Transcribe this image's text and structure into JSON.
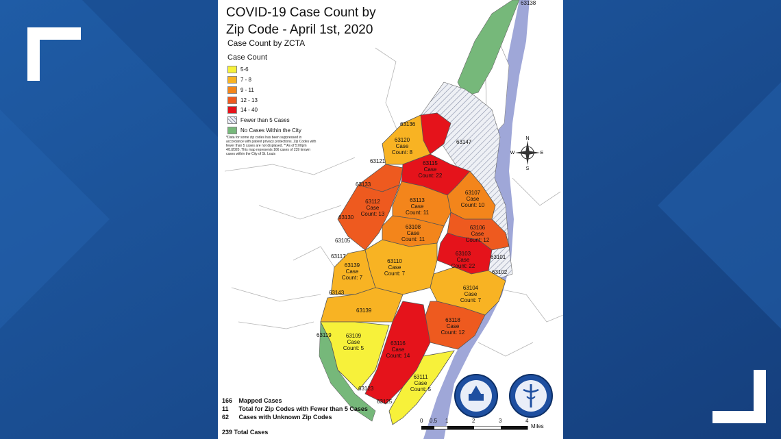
{
  "title": "COVID-19 Case Count by Zip Code - April 1st, 2020",
  "title_line1": "COVID-19 Case Count by",
  "title_line2": "Zip Code - April 1st, 2020",
  "subtitle": "Case Count by ZCTA",
  "legend": {
    "title": "Case Count",
    "items": [
      {
        "label": "5-6",
        "color": "#f7f13a"
      },
      {
        "label": "7 - 8",
        "color": "#f8b323"
      },
      {
        "label": "9 - 11",
        "color": "#f3851b"
      },
      {
        "label": "12 - 13",
        "color": "#ee5a1f"
      },
      {
        "label": "14 - 40",
        "color": "#e5131b"
      },
      {
        "label": "Fewer than 5 Cases",
        "color": "#e6e9f0"
      },
      {
        "label": "No Cases Within the City",
        "color": "#76b87a"
      }
    ]
  },
  "note": "*Data for some zip codes has been suppressed in accordance with patient privacy protections. Zip Codes with fewer than 5 cases are not displayed. **As of 5:00pm 4/1/2020, This map represents 166 cases of 239 known cases within the City of St. Louis",
  "zips": {
    "z63138": "63138",
    "z63136": "63136",
    "z63147": "63147",
    "z63121": "63121",
    "z63133": "63133",
    "z63130": "63130",
    "z63105": "63105",
    "z63117": "63117",
    "z63143": "63143",
    "z63139b": "63139",
    "z63119": "63119",
    "z63123": "63123",
    "z63125": "63125",
    "z63101": "63101",
    "z63102": "63102"
  },
  "areas": {
    "a63120": {
      "zip": "63120",
      "l1": "Case",
      "l2": "Count: 8"
    },
    "a63115": {
      "zip": "63115",
      "l1": "Case",
      "l2": "Count: 22"
    },
    "a63107": {
      "zip": "63107",
      "l1": "Case",
      "l2": "Count: 10"
    },
    "a63112": {
      "zip": "63112",
      "l1": "Case",
      "l2": "Count: 13"
    },
    "a63113": {
      "zip": "63113",
      "l1": "Case",
      "l2": "Count: 11"
    },
    "a63108": {
      "zip": "63108",
      "l1": "Case",
      "l2": "Count: 11"
    },
    "a63106": {
      "zip": "63106",
      "l1": "Case",
      "l2": "Count: 12"
    },
    "a63103": {
      "zip": "63103",
      "l1": "Case",
      "l2": "Count: 22"
    },
    "a63110": {
      "zip": "63110",
      "l1": "Case",
      "l2": "Count: 7"
    },
    "a63139": {
      "zip": "63139",
      "l1": "Case",
      "l2": "Count: 7"
    },
    "a63104": {
      "zip": "63104",
      "l1": "Case",
      "l2": "Count: 7"
    },
    "a63118": {
      "zip": "63118",
      "l1": "Case",
      "l2": "Count: 12"
    },
    "a63109": {
      "zip": "63109",
      "l1": "Case",
      "l2": "Count: 5"
    },
    "a63116": {
      "zip": "63116",
      "l1": "Case",
      "l2": "Count: 14"
    },
    "a63111": {
      "zip": "63111",
      "l1": "Case",
      "l2": "Count: 5"
    }
  },
  "stats": {
    "mapped_n": "166",
    "mapped_label": "Mapped Cases",
    "fewer_n": "11",
    "fewer_label": "Total for Zip Codes with Fewer than 5 Cases",
    "unknown_n": "62",
    "unknown_label": "Cases with Unknown Zip Codes",
    "total": "239 Total Cases"
  },
  "scale": {
    "ticks": [
      "0",
      "0.5",
      "1",
      "2",
      "3",
      "4"
    ],
    "unit": "Miles"
  },
  "compass": {
    "n": "N",
    "s": "S",
    "e": "E",
    "w": "W"
  },
  "colors": {
    "background": "#1a4f93",
    "river": "#9fa7d8",
    "park": "#76b87a"
  }
}
